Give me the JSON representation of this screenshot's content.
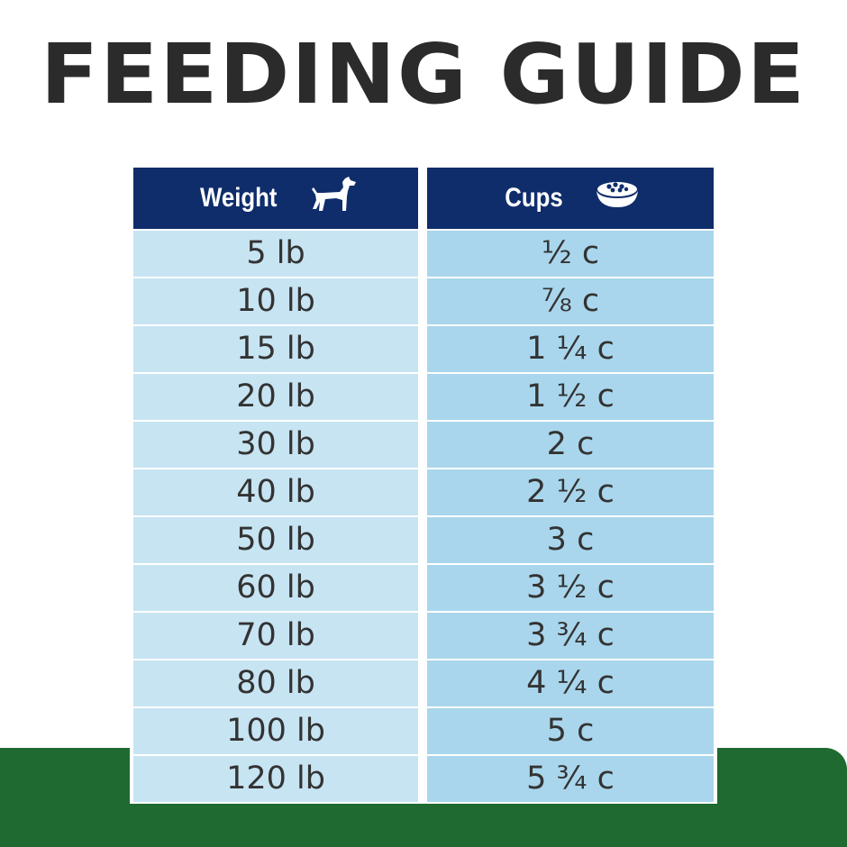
{
  "title": "FEEDING GUIDE",
  "header": {
    "weight_label": "Weight",
    "cups_label": "Cups"
  },
  "icons": {
    "weight": "dog-icon",
    "cups": "food-bowl-icon"
  },
  "colors": {
    "header_bg": "#0f2d6b",
    "weight_cell": "#c7e4f3",
    "cups_cell": "#a9d6ec",
    "green_band": "#1f6a30",
    "title_text": "#2b2b2b"
  },
  "rows": [
    {
      "weight": "5 lb",
      "cups": "½ c"
    },
    {
      "weight": "10 lb",
      "cups": "⅞ c"
    },
    {
      "weight": "15 lb",
      "cups": "1 ¼ c"
    },
    {
      "weight": "20 lb",
      "cups": "1 ½ c"
    },
    {
      "weight": "30 lb",
      "cups": "2 c"
    },
    {
      "weight": "40 lb",
      "cups": "2 ½ c"
    },
    {
      "weight": "50 lb",
      "cups": "3 c"
    },
    {
      "weight": "60 lb",
      "cups": "3 ½ c"
    },
    {
      "weight": "70 lb",
      "cups": "3 ¾ c"
    },
    {
      "weight": "80 lb",
      "cups": "4 ¼ c"
    },
    {
      "weight": "100 lb",
      "cups": "5 c"
    },
    {
      "weight": "120 lb",
      "cups": "5 ¾ c"
    }
  ]
}
